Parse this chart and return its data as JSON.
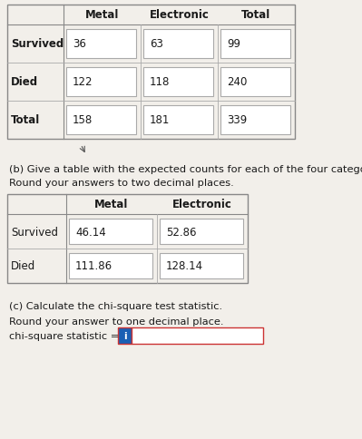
{
  "bg_color": "#f2efea",
  "table1": {
    "col_labels": [
      "Metal",
      "Electronic",
      "Total"
    ],
    "row_labels": [
      "Survived",
      "Died",
      "Total"
    ],
    "cells": [
      [
        "36",
        "63",
        "99"
      ],
      [
        "122",
        "118",
        "240"
      ],
      [
        "158",
        "181",
        "339"
      ]
    ]
  },
  "text_b": "(b) Give a table with the expected counts for each of the four categories.",
  "text_round2": "Round your answers to two decimal places.",
  "table2": {
    "col_labels": [
      "Metal",
      "Electronic"
    ],
    "row_labels": [
      "Survived",
      "Died"
    ],
    "cells": [
      [
        "46.14",
        "52.86"
      ],
      [
        "111.86",
        "128.14"
      ]
    ]
  },
  "text_c": "(c) Calculate the chi-square test statistic.",
  "text_round1": "Round your answer to one decimal place.",
  "text_chi": "chi-square statistic = ",
  "input_label": "i",
  "input_bg": "#1a5fb4",
  "input_text_color": "#ffffff",
  "cell_bg": "#ffffff",
  "cell_border": "#aaaaaa",
  "outer_border": "#888888",
  "font_size": 8.5
}
